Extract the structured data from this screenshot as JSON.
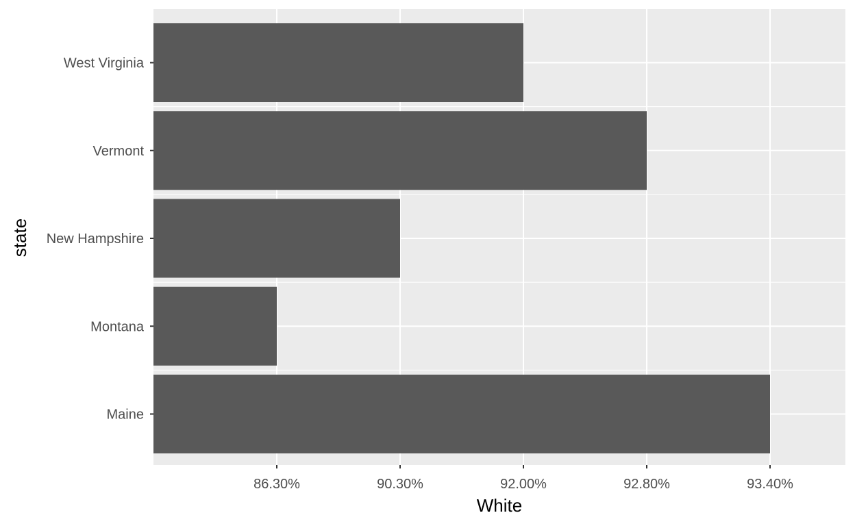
{
  "chart_data": {
    "type": "bar",
    "orientation": "horizontal",
    "categories": [
      "Maine",
      "Montana",
      "New Hampshire",
      "Vermont",
      "West Virginia"
    ],
    "values": [
      "93.40%",
      "86.30%",
      "90.30%",
      "92.80%",
      "92.00%"
    ],
    "x_tick_labels": [
      "86.30%",
      "90.30%",
      "92.00%",
      "92.80%",
      "93.40%"
    ],
    "xlabel": "White",
    "ylabel": "state",
    "x_axis_type": "discrete",
    "grid": true,
    "legend": "none",
    "colors": {
      "bar": "#595959",
      "panel": "#ebebeb",
      "grid": "#ffffff",
      "tick": "#333333"
    }
  }
}
